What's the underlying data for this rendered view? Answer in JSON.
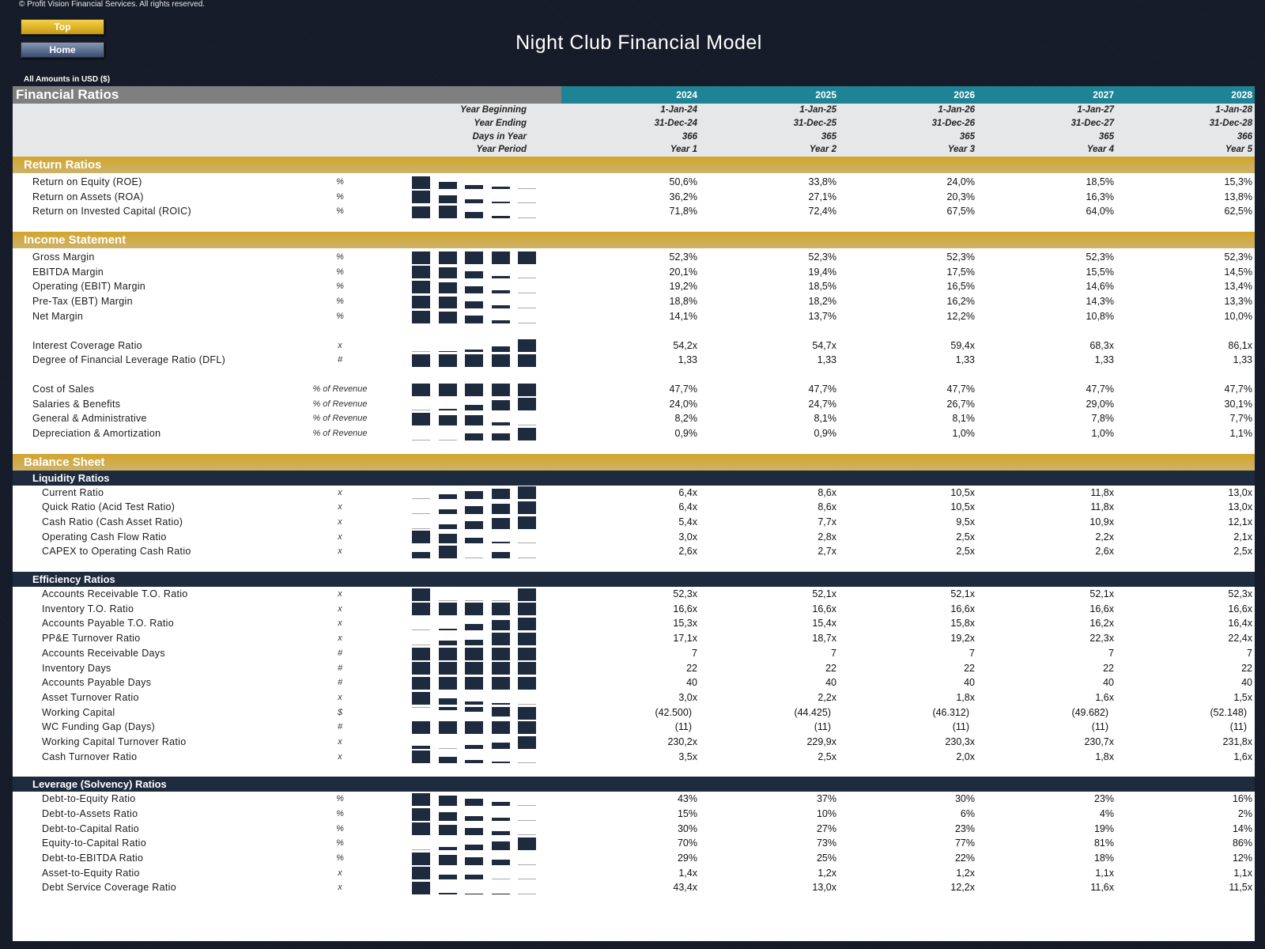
{
  "copyright": "© Profit Vision Financial Services. All rights reserved.",
  "nav": {
    "top_label": "Top",
    "home_label": "Home"
  },
  "title": "Night Club Financial Model",
  "amounts_note": "All Amounts in  USD ($)",
  "header": {
    "section_title": "Financial Ratios",
    "years": [
      "2024",
      "2025",
      "2026",
      "2027",
      "2028"
    ],
    "info_rows": [
      {
        "label": "Year Beginning",
        "values": [
          "1-Jan-24",
          "1-Jan-25",
          "1-Jan-26",
          "1-Jan-27",
          "1-Jan-28"
        ]
      },
      {
        "label": "Year Ending",
        "values": [
          "31-Dec-24",
          "31-Dec-25",
          "31-Dec-26",
          "31-Dec-27",
          "31-Dec-28"
        ]
      },
      {
        "label": "Days in Year",
        "values": [
          "366",
          "365",
          "365",
          "365",
          "366"
        ]
      },
      {
        "label": "Year Period",
        "values": [
          "Year 1",
          "Year 2",
          "Year 3",
          "Year 4",
          "Year 5"
        ]
      }
    ]
  },
  "colors": {
    "gold": "#d3a52a",
    "navy": "#1e2a3e",
    "teal": "#1f8396",
    "gray": "#7f7f7f"
  },
  "sections": [
    {
      "title": "Return Ratios",
      "groups": [
        {
          "rows": [
            {
              "label": "Return on Equity (ROE)",
              "unit": "%",
              "values": [
                "50,6%",
                "33,8%",
                "24,0%",
                "18,5%",
                "15,3%"
              ]
            },
            {
              "label": "Return on Assets (ROA)",
              "unit": "%",
              "values": [
                "36,2%",
                "27,1%",
                "20,3%",
                "16,3%",
                "13,8%"
              ]
            },
            {
              "label": "Return on Invested Capital (ROIC)",
              "unit": "%",
              "values": [
                "71,8%",
                "72,4%",
                "67,5%",
                "64,0%",
                "62,5%"
              ]
            }
          ]
        }
      ]
    },
    {
      "title": "Income Statement",
      "groups": [
        {
          "rows": [
            {
              "label": "Gross Margin",
              "unit": "%",
              "values": [
                "52,3%",
                "52,3%",
                "52,3%",
                "52,3%",
                "52,3%"
              ]
            },
            {
              "label": "EBITDA Margin",
              "unit": "%",
              "values": [
                "20,1%",
                "19,4%",
                "17,5%",
                "15,5%",
                "14,5%"
              ]
            },
            {
              "label": "Operating (EBIT) Margin",
              "unit": "%",
              "values": [
                "19,2%",
                "18,5%",
                "16,5%",
                "14,6%",
                "13,4%"
              ]
            },
            {
              "label": "Pre-Tax (EBT) Margin",
              "unit": "%",
              "values": [
                "18,8%",
                "18,2%",
                "16,2%",
                "14,3%",
                "13,3%"
              ]
            },
            {
              "label": "Net Margin",
              "unit": "%",
              "values": [
                "14,1%",
                "13,7%",
                "12,2%",
                "10,8%",
                "10,0%"
              ]
            }
          ]
        },
        {
          "rows": [
            {
              "label": "Interest Coverage Ratio",
              "unit": "x",
              "values": [
                "54,2x",
                "54,7x",
                "59,4x",
                "68,3x",
                "86,1x"
              ]
            },
            {
              "label": "Degree of Financial Leverage Ratio (DFL)",
              "unit": "#",
              "values": [
                "1,33",
                "1,33",
                "1,33",
                "1,33",
                "1,33"
              ]
            }
          ]
        },
        {
          "rows": [
            {
              "label": "Cost of Sales",
              "unit": "% of Revenue",
              "values": [
                "47,7%",
                "47,7%",
                "47,7%",
                "47,7%",
                "47,7%"
              ]
            },
            {
              "label": "Salaries & Benefits",
              "unit": "% of Revenue",
              "values": [
                "24,0%",
                "24,7%",
                "26,7%",
                "29,0%",
                "30,1%"
              ]
            },
            {
              "label": "General & Administrative",
              "unit": "% of Revenue",
              "values": [
                "8,2%",
                "8,1%",
                "8,1%",
                "7,8%",
                "7,7%"
              ]
            },
            {
              "label": "Depreciation & Amortization",
              "unit": "% of Revenue",
              "values": [
                "0,9%",
                "0,9%",
                "1,0%",
                "1,0%",
                "1,1%"
              ]
            }
          ]
        }
      ]
    },
    {
      "title": "Balance Sheet",
      "groups": [
        {
          "subtitle": "Liquidity Ratios",
          "rows": [
            {
              "label": "Current Ratio",
              "unit": "x",
              "values": [
                "6,4x",
                "8,6x",
                "10,5x",
                "11,8x",
                "13,0x"
              ]
            },
            {
              "label": "Quick Ratio (Acid Test Ratio)",
              "unit": "x",
              "values": [
                "6,4x",
                "8,6x",
                "10,5x",
                "11,8x",
                "13,0x"
              ]
            },
            {
              "label": "Cash Ratio (Cash Asset Ratio)",
              "unit": "x",
              "values": [
                "5,4x",
                "7,7x",
                "9,5x",
                "10,9x",
                "12,1x"
              ]
            },
            {
              "label": "Operating Cash Flow Ratio",
              "unit": "x",
              "values": [
                "3,0x",
                "2,8x",
                "2,5x",
                "2,2x",
                "2,1x"
              ]
            },
            {
              "label": "CAPEX to Operating Cash Ratio",
              "unit": "x",
              "values": [
                "2,6x",
                "2,7x",
                "2,5x",
                "2,6x",
                "2,5x"
              ]
            }
          ]
        },
        {
          "subtitle": "Efficiency Ratios",
          "rows": [
            {
              "label": "Accounts Receivable T.O. Ratio",
              "unit": "x",
              "values": [
                "52,3x",
                "52,1x",
                "52,1x",
                "52,1x",
                "52,3x"
              ]
            },
            {
              "label": "Inventory T.O. Ratio",
              "unit": "x",
              "values": [
                "16,6x",
                "16,6x",
                "16,6x",
                "16,6x",
                "16,6x"
              ]
            },
            {
              "label": "Accounts Payable T.O. Ratio",
              "unit": "x",
              "values": [
                "15,3x",
                "15,4x",
                "15,8x",
                "16,2x",
                "16,4x"
              ]
            },
            {
              "label": "PP&E Turnover Ratio",
              "unit": "x",
              "values": [
                "17,1x",
                "18,7x",
                "19,2x",
                "22,3x",
                "22,4x"
              ]
            },
            {
              "label": "Accounts Receivable Days",
              "unit": "#",
              "values": [
                "7",
                "7",
                "7",
                "7",
                "7"
              ]
            },
            {
              "label": "Inventory Days",
              "unit": "#",
              "values": [
                "22",
                "22",
                "22",
                "22",
                "22"
              ]
            },
            {
              "label": "Accounts Payable Days",
              "unit": "#",
              "values": [
                "40",
                "40",
                "40",
                "40",
                "40"
              ]
            },
            {
              "label": "Asset Turnover Ratio",
              "unit": "x",
              "values": [
                "3,0x",
                "2,2x",
                "1,8x",
                "1,6x",
                "1,5x"
              ]
            },
            {
              "label": "Working Capital",
              "unit": "$",
              "values": [
                "(42.500)",
                "(44.425)",
                "(46.312)",
                "(49.682)",
                "(52.148)"
              ]
            },
            {
              "label": "WC Funding Gap (Days)",
              "unit": "#",
              "values": [
                "(11)",
                "(11)",
                "(11)",
                "(11)",
                "(11)"
              ]
            },
            {
              "label": "Working Capital Turnover Ratio",
              "unit": "x",
              "values": [
                "230,2x",
                "229,9x",
                "230,3x",
                "230,7x",
                "231,8x"
              ]
            },
            {
              "label": "Cash Turnover Ratio",
              "unit": "x",
              "values": [
                "3,5x",
                "2,5x",
                "2,0x",
                "1,8x",
                "1,6x"
              ]
            }
          ]
        },
        {
          "subtitle": "Leverage (Solvency) Ratios",
          "rows": [
            {
              "label": "Debt-to-Equity Ratio",
              "unit": "%",
              "values": [
                "43%",
                "37%",
                "30%",
                "23%",
                "16%"
              ]
            },
            {
              "label": "Debt-to-Assets Ratio",
              "unit": "%",
              "values": [
                "15%",
                "10%",
                "6%",
                "4%",
                "2%"
              ]
            },
            {
              "label": "Debt-to-Capital Ratio",
              "unit": "%",
              "values": [
                "30%",
                "27%",
                "23%",
                "19%",
                "14%"
              ]
            },
            {
              "label": "Equity-to-Capital Ratio",
              "unit": "%",
              "values": [
                "70%",
                "73%",
                "77%",
                "81%",
                "86%"
              ]
            },
            {
              "label": "Debt-to-EBITDA Ratio",
              "unit": "%",
              "values": [
                "29%",
                "25%",
                "22%",
                "18%",
                "12%"
              ]
            },
            {
              "label": "Asset-to-Equity Ratio",
              "unit": "x",
              "values": [
                "1,4x",
                "1,2x",
                "1,2x",
                "1,1x",
                "1,1x"
              ]
            },
            {
              "label": "Debt Service Coverage Ratio",
              "unit": "x",
              "values": [
                "43,4x",
                "13,0x",
                "12,2x",
                "11,6x",
                "11,5x"
              ]
            }
          ]
        }
      ]
    }
  ]
}
